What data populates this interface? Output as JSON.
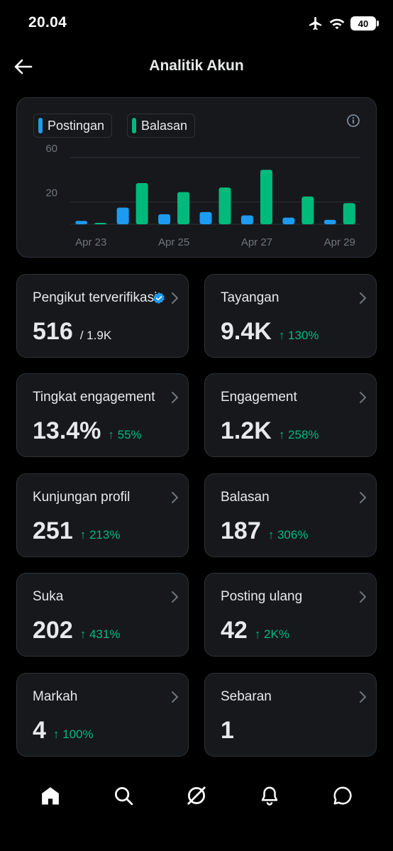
{
  "status": {
    "time": "20.04",
    "battery": "40",
    "icons": [
      "airplane-icon",
      "wifi-icon",
      "battery-icon"
    ]
  },
  "header": {
    "title": "Analitik Akun",
    "back_icon": "arrow-left-icon"
  },
  "legend": {
    "posts": "Postingan",
    "replies": "Balasan"
  },
  "colors": {
    "posts": "#1d9bf0",
    "replies": "#00ba7c",
    "change": "#00ba7c",
    "verified": "#1d9bf0"
  },
  "chart_data": {
    "type": "bar",
    "categories": [
      "Apr 23",
      "Apr 24",
      "Apr 25",
      "Apr 26",
      "Apr 27",
      "Apr 28",
      "Apr 29"
    ],
    "x_tick_labels": [
      "Apr 23",
      "Apr 25",
      "Apr 27",
      "Apr 29"
    ],
    "y_ticks": [
      "60",
      "20"
    ],
    "ylim": [
      0,
      60
    ],
    "series": [
      {
        "name": "Postingan",
        "values": [
          3,
          15,
          9,
          11,
          8,
          6,
          4
        ]
      },
      {
        "name": "Balasan",
        "values": [
          1,
          37,
          29,
          33,
          49,
          25,
          19
        ]
      }
    ],
    "grid": true
  },
  "metrics": [
    {
      "label": "Pengikut terverifikasi",
      "value": "516",
      "sub": "/ 1.9K",
      "change": "",
      "verified": true
    },
    {
      "label": "Tayangan",
      "value": "9.4K",
      "sub": "",
      "change": "↑ 130%"
    },
    {
      "label": "Tingkat engagement",
      "value": "13.4%",
      "sub": "",
      "change": "↑ 55%"
    },
    {
      "label": "Engagement",
      "value": "1.2K",
      "sub": "",
      "change": "↑ 258%"
    },
    {
      "label": "Kunjungan profil",
      "value": "251",
      "sub": "",
      "change": "↑ 213%"
    },
    {
      "label": "Balasan",
      "value": "187",
      "sub": "",
      "change": "↑ 306%"
    },
    {
      "label": "Suka",
      "value": "202",
      "sub": "",
      "change": "↑ 431%"
    },
    {
      "label": "Posting ulang",
      "value": "42",
      "sub": "",
      "change": "↑ 2K%"
    },
    {
      "label": "Markah",
      "value": "4",
      "sub": "",
      "change": "↑ 100%"
    },
    {
      "label": "Sebaran",
      "value": "1",
      "sub": "",
      "change": ""
    }
  ],
  "nav": [
    "home-icon",
    "search-icon",
    "grok-icon",
    "notifications-icon",
    "messages-icon"
  ]
}
